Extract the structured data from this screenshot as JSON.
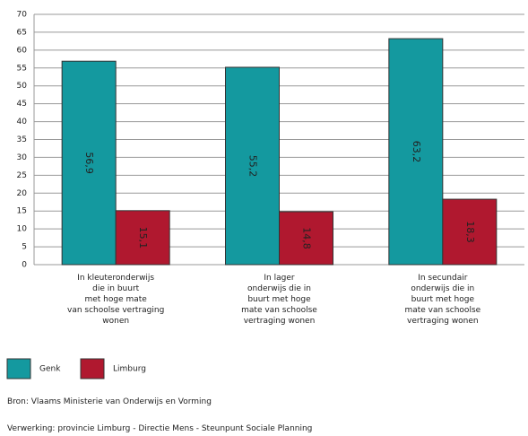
{
  "chart_data": {
    "type": "bar",
    "categories": [
      "In kleuteronderwijs\ndie in buurt\nmet hoge mate\nvan schoolse vertraging\nwonen",
      "In lager\nonderwijs die in\nbuurt met hoge\nmate van schoolse\nvertraging wonen",
      "In secundair\nonderwijs die in\nbuurt met hoge\nmate van schoolse\nvertraging wonen"
    ],
    "series": [
      {
        "name": "Genk",
        "color": "#14999f",
        "values": [
          56.9,
          55.2,
          63.2
        ],
        "value_labels": [
          "56,9",
          "55,2",
          "63,2"
        ]
      },
      {
        "name": "Limburg",
        "color": "#b0182f",
        "values": [
          15.1,
          14.8,
          18.3
        ],
        "value_labels": [
          "15,1",
          "14,8",
          "18,3"
        ]
      }
    ],
    "ylim": [
      0,
      70
    ],
    "yticks": [
      0,
      5,
      10,
      15,
      20,
      25,
      30,
      35,
      40,
      45,
      50,
      55,
      60,
      65,
      70
    ],
    "grid": true,
    "legend": "bottom-left",
    "source": "Bron: Vlaams Ministerie van Onderwijs en Vorming",
    "processing": "Verwerking: provincie Limburg - Directie Mens - Steunpunt Sociale Planning"
  }
}
